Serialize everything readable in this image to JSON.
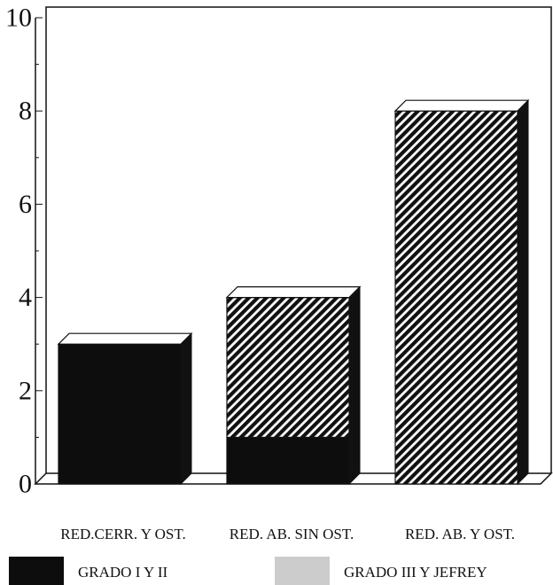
{
  "chart_data": {
    "type": "bar",
    "stacked": true,
    "categories": [
      "RED.CERR. Y OST.",
      "RED. AB. SIN OST.",
      "RED. AB. Y OST."
    ],
    "series": [
      {
        "name": "GRADO I Y II",
        "values": [
          3,
          1,
          0
        ],
        "color": "#0d0d0d"
      },
      {
        "name": "GRADO III Y JEFREY",
        "values": [
          0,
          3,
          8
        ],
        "color": "#cccccc"
      }
    ],
    "ylim": [
      0,
      10
    ],
    "yticks": [
      0,
      2,
      4,
      6,
      8,
      10
    ],
    "grid": false,
    "legend_position": "bottom",
    "style": "3d-bars"
  }
}
